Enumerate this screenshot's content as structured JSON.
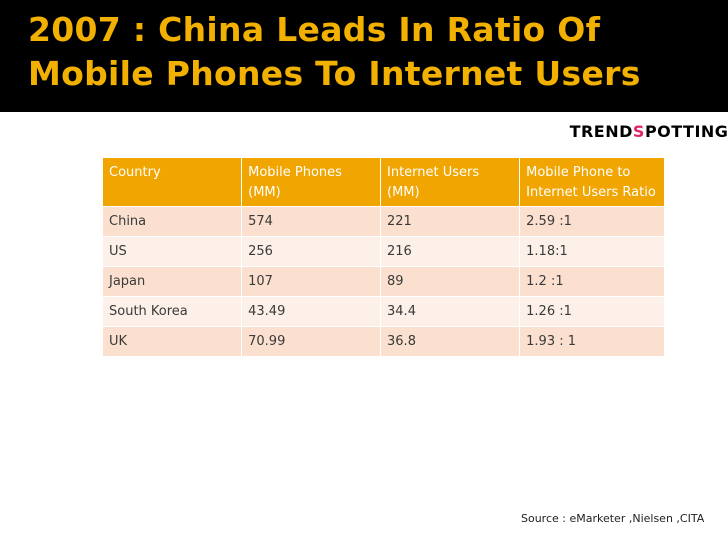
{
  "slide": {
    "title": "2007 : China Leads In Ratio Of Mobile Phones To Internet Users",
    "source": "Source : eMarketer ,Nielsen ,CITA",
    "colors": {
      "title": "#f2b100",
      "header": "#f0a500",
      "row_odd": "#fbe0cf",
      "row_even": "#fdf0e8",
      "logo_accent": "#e2246a"
    }
  },
  "logo": {
    "left": "TREND",
    "mark": "S",
    "right": "POTTING"
  },
  "table": {
    "headers": [
      "Country",
      "Mobile Phones (MM)",
      "Internet Users (MM)",
      "Mobile Phone to Internet Users  Ratio"
    ],
    "rows": [
      [
        "China",
        "574",
        "221",
        "2.59 :1"
      ],
      [
        "US",
        "256",
        "216",
        "1.18:1"
      ],
      [
        "Japan",
        "107",
        "89",
        "1.2 :1"
      ],
      [
        "South Korea",
        "43.49",
        "34.4",
        "1.26 :1"
      ],
      [
        "UK",
        "70.99",
        "36.8",
        "1.93 : 1"
      ]
    ]
  }
}
